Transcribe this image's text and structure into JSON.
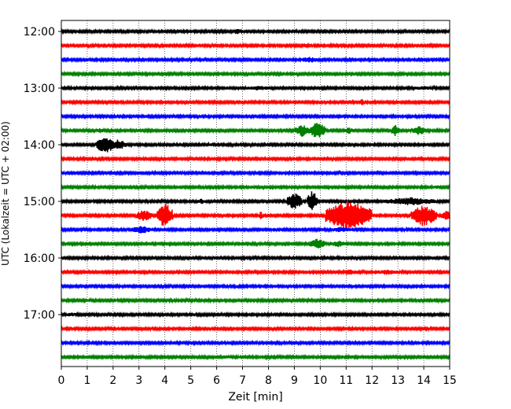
{
  "chart_data": {
    "type": "line",
    "title": "",
    "xlabel": "Zeit  [min]",
    "ylabel": "UTC (Lokalzeit = UTC + 02:00)",
    "xlim": [
      0,
      15
    ],
    "x_ticks": [
      "0",
      "1",
      "2",
      "3",
      "4",
      "5",
      "6",
      "7",
      "8",
      "9",
      "10",
      "11",
      "12",
      "13",
      "14",
      "15"
    ],
    "y_tick_labels": [
      "12:00",
      "13:00",
      "14:00",
      "15:00",
      "16:00",
      "17:00"
    ],
    "grid": "vertical dotted lines at each minute",
    "trace_interval_minutes": 15,
    "trace_colors": [
      "#000000",
      "#ff0000",
      "#0000ff",
      "#008000"
    ],
    "traces": [
      {
        "start": "12:00",
        "color": "#000000",
        "events": [
          {
            "t": 6.8,
            "amp": 0.6,
            "dur": 0.1
          }
        ]
      },
      {
        "start": "12:15",
        "color": "#ff0000",
        "events": [
          {
            "t": 9.4,
            "amp": 0.35,
            "dur": 0.1
          },
          {
            "t": 1.2,
            "amp": 0.15,
            "dur": 0.3
          }
        ]
      },
      {
        "start": "12:30",
        "color": "#0000ff",
        "events": [
          {
            "t": 9.6,
            "amp": 0.45,
            "dur": 0.4
          },
          {
            "t": 14.5,
            "amp": 0.35,
            "dur": 0.1
          }
        ]
      },
      {
        "start": "12:45",
        "color": "#008000",
        "events": []
      },
      {
        "start": "13:00",
        "color": "#000000",
        "events": [
          {
            "t": 7.6,
            "amp": 0.35,
            "dur": 0.6
          },
          {
            "t": 14.0,
            "amp": 0.3,
            "dur": 0.6
          }
        ]
      },
      {
        "start": "13:15",
        "color": "#ff0000",
        "events": [
          {
            "t": 11.6,
            "amp": 0.5,
            "dur": 0.1
          }
        ]
      },
      {
        "start": "13:30",
        "color": "#0000ff",
        "events": [
          {
            "t": 6.5,
            "amp": 0.15,
            "dur": 0.8
          }
        ]
      },
      {
        "start": "13:45",
        "color": "#008000",
        "events": [
          {
            "t": 1.5,
            "amp": 0.4,
            "dur": 0.15
          },
          {
            "t": 9.3,
            "amp": 0.9,
            "dur": 0.3
          },
          {
            "t": 9.9,
            "amp": 1.3,
            "dur": 0.3
          },
          {
            "t": 11.1,
            "amp": 0.5,
            "dur": 0.2
          },
          {
            "t": 12.9,
            "amp": 0.9,
            "dur": 0.15
          },
          {
            "t": 13.8,
            "amp": 0.7,
            "dur": 0.25
          }
        ]
      },
      {
        "start": "14:00",
        "color": "#000000",
        "events": [
          {
            "t": 1.7,
            "amp": 1.3,
            "dur": 0.35
          },
          {
            "t": 2.2,
            "amp": 0.8,
            "dur": 0.3
          },
          {
            "t": 5.8,
            "amp": 0.25,
            "dur": 0.1
          }
        ]
      },
      {
        "start": "14:15",
        "color": "#ff0000",
        "events": []
      },
      {
        "start": "14:30",
        "color": "#0000ff",
        "events": []
      },
      {
        "start": "14:45",
        "color": "#008000",
        "events": [
          {
            "t": 2.0,
            "amp": 0.2,
            "dur": 0.2
          },
          {
            "t": 14.5,
            "amp": 0.3,
            "dur": 0.2
          }
        ]
      },
      {
        "start": "15:00",
        "color": "#000000",
        "events": [
          {
            "t": 9.0,
            "amp": 1.3,
            "dur": 0.3
          },
          {
            "t": 9.7,
            "amp": 1.6,
            "dur": 0.2
          },
          {
            "t": 13.5,
            "amp": 0.6,
            "dur": 1.0
          },
          {
            "t": 5.4,
            "amp": 0.4,
            "dur": 0.2
          }
        ]
      },
      {
        "start": "15:15",
        "color": "#ff0000",
        "events": [
          {
            "t": 3.2,
            "amp": 0.9,
            "dur": 0.3
          },
          {
            "t": 4.0,
            "amp": 1.9,
            "dur": 0.3
          },
          {
            "t": 7.7,
            "amp": 0.9,
            "dur": 0.05
          },
          {
            "t": 11.1,
            "amp": 2.2,
            "dur": 0.9
          },
          {
            "t": 14.0,
            "amp": 1.6,
            "dur": 0.5
          },
          {
            "t": 14.9,
            "amp": 0.8,
            "dur": 0.2
          }
        ]
      },
      {
        "start": "15:30",
        "color": "#0000ff",
        "events": [
          {
            "t": 3.1,
            "amp": 0.6,
            "dur": 0.4
          },
          {
            "t": 8.2,
            "amp": 0.35,
            "dur": 0.1
          },
          {
            "t": 10.8,
            "amp": 0.4,
            "dur": 0.5
          }
        ]
      },
      {
        "start": "15:45",
        "color": "#008000",
        "events": [
          {
            "t": 9.9,
            "amp": 0.8,
            "dur": 0.3
          },
          {
            "t": 10.7,
            "amp": 0.5,
            "dur": 0.3
          }
        ]
      },
      {
        "start": "16:00",
        "color": "#000000",
        "events": [
          {
            "t": 5.9,
            "amp": 0.25,
            "dur": 0.1
          },
          {
            "t": 10.7,
            "amp": 0.2,
            "dur": 0.2
          }
        ]
      },
      {
        "start": "16:15",
        "color": "#ff0000",
        "events": [
          {
            "t": 11.1,
            "amp": 0.5,
            "dur": 0.2
          },
          {
            "t": 12.6,
            "amp": 0.4,
            "dur": 0.6
          }
        ]
      },
      {
        "start": "16:30",
        "color": "#0000ff",
        "events": [
          {
            "t": 6.8,
            "amp": 0.3,
            "dur": 0.1
          },
          {
            "t": 8.4,
            "amp": 0.2,
            "dur": 0.1
          },
          {
            "t": 11.3,
            "amp": 0.3,
            "dur": 0.1
          }
        ]
      },
      {
        "start": "16:45",
        "color": "#008000",
        "events": [
          {
            "t": 1.0,
            "amp": 0.2,
            "dur": 0.4
          }
        ]
      },
      {
        "start": "17:00",
        "color": "#000000",
        "events": [
          {
            "t": 0.4,
            "amp": 0.3,
            "dur": 0.3
          }
        ]
      },
      {
        "start": "17:15",
        "color": "#ff0000",
        "events": []
      },
      {
        "start": "17:30",
        "color": "#0000ff",
        "events": [
          {
            "t": 9.0,
            "amp": 0.3,
            "dur": 0.1
          }
        ]
      },
      {
        "start": "17:45",
        "color": "#008000",
        "events": [
          {
            "t": 6.4,
            "amp": 0.3,
            "dur": 0.3
          }
        ]
      }
    ]
  }
}
